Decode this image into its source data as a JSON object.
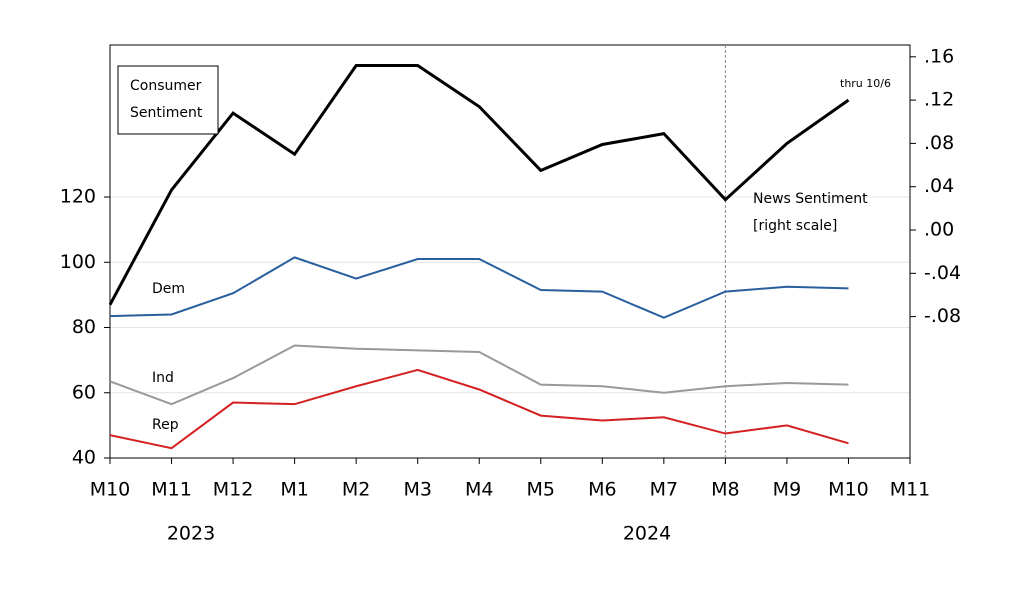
{
  "chart_data": {
    "type": "line",
    "title_lines": [
      "Consumer",
      "Sentiment"
    ],
    "categories": [
      "M10",
      "M11",
      "M12",
      "M1",
      "M2",
      "M3",
      "M4",
      "M5",
      "M6",
      "M7",
      "M8",
      "M9",
      "M10",
      "M11"
    ],
    "year_labels": [
      "2023",
      "2024"
    ],
    "series": [
      {
        "name": "Dem",
        "color": "#2a5f9e",
        "values": [
          83.5,
          84,
          90.5,
          101.5,
          95,
          101,
          101,
          91.5,
          91,
          83,
          91,
          92.5,
          92,
          null
        ]
      },
      {
        "name": "Ind",
        "color": "#999999",
        "values": [
          63.5,
          56.5,
          64.5,
          74.5,
          73.5,
          73,
          72.5,
          62.5,
          62,
          60,
          62,
          63,
          62.5,
          null
        ]
      },
      {
        "name": "Rep",
        "color": "#d42020",
        "values": [
          47,
          43,
          57,
          56.5,
          62,
          67,
          61,
          53,
          51.5,
          52.5,
          47.5,
          50,
          44.5,
          null
        ]
      },
      {
        "name": "News Sentiment",
        "color": "#000000",
        "axis": "y2",
        "values": [
          -0.069,
          0.037,
          0.108,
          0.07,
          0.152,
          0.152,
          0.114,
          0.055,
          0.079,
          0.089,
          0.028,
          0.08,
          0.12,
          null
        ]
      }
    ],
    "annotations": [
      "[right scale]",
      "thru 10/6"
    ],
    "vline_category": 10,
    "ylim": [
      40,
      166.6
    ],
    "yticks": [
      40,
      60,
      80,
      100,
      120
    ],
    "y2lim": [
      -0.2106,
      0.1709
    ],
    "y2ticks": [
      {
        "value": 0.16,
        "label": ".16"
      },
      {
        "value": 0.12,
        "label": ".12"
      },
      {
        "value": 0.08,
        "label": ".08"
      },
      {
        "value": 0.04,
        "label": ".04"
      },
      {
        "value": 0,
        "label": ".00"
      },
      {
        "value": -0.04,
        "label": "-.04"
      },
      {
        "value": -0.08,
        "label": "-.08"
      }
    ],
    "grid": true
  }
}
